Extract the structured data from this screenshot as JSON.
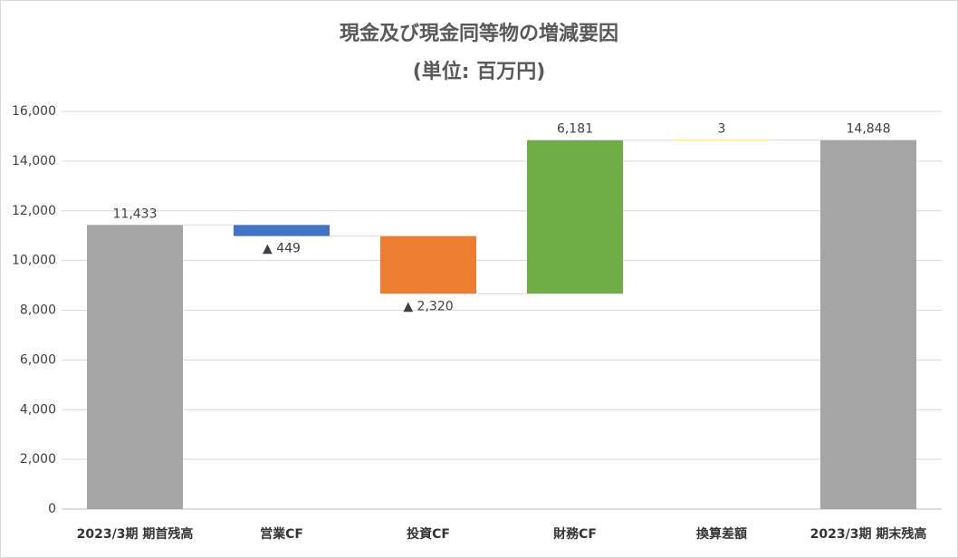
{
  "chart_data": {
    "type": "waterfall",
    "title": "現金及び現金同等物の増減要因",
    "subtitle": "(単位: 百万円)",
    "categories": [
      "2023/3期 期首残高",
      "営業CF",
      "投資CF",
      "財務CF",
      "換算差額",
      "2023/3期 期末残高"
    ],
    "values": [
      11433,
      -449,
      -2320,
      6181,
      3,
      14848
    ],
    "value_labels": [
      "11,433",
      "▲ 449",
      "▲ 2,320",
      "6,181",
      "3",
      "14,848"
    ],
    "totals": [
      true,
      false,
      false,
      false,
      false,
      true
    ],
    "colors": [
      "#a5a5a5",
      "#4472c4",
      "#ed7d31",
      "#70ad47",
      "#ffc000",
      "#a5a5a5"
    ],
    "ylim": [
      0,
      16000
    ],
    "yticks": [
      0,
      {
        "value": 2000,
        "label": "2,000"
      },
      {
        "value": 4000,
        "label": "4,000"
      },
      {
        "value": 6000,
        "label": "6,000"
      },
      {
        "value": 8000,
        "label": "8,000"
      },
      {
        "value": 10000,
        "label": "10,000"
      },
      {
        "value": 12000,
        "label": "12,000"
      },
      {
        "value": 14000,
        "label": "14,000"
      },
      {
        "value": 16000,
        "label": "16,000"
      }
    ],
    "grid": true
  }
}
